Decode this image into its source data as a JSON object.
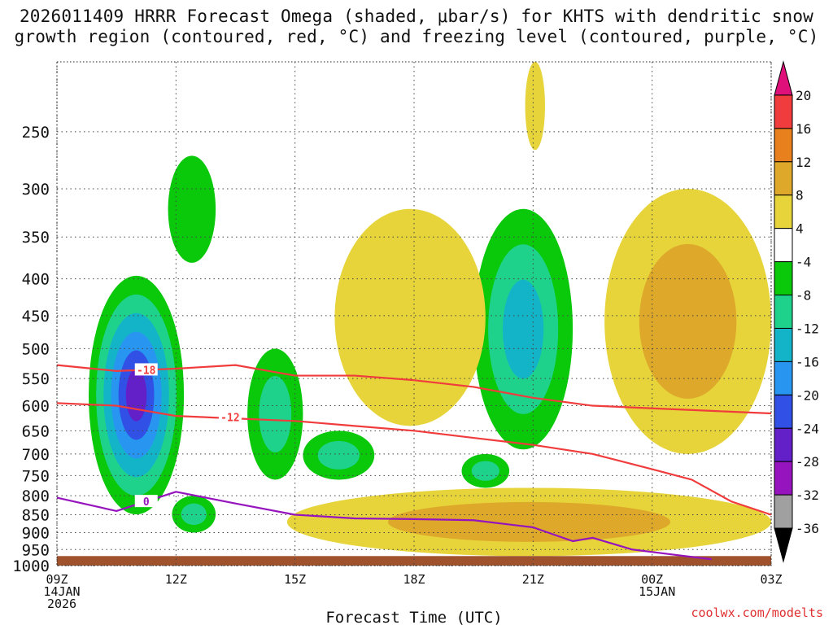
{
  "title_line1": "2026011409 HRRR Forecast Omega (shaded, μbar/s) for KHTS with dendritic snow",
  "title_line2": "growth region (contoured, red, °C) and freezing level (contoured, purple, °C)",
  "credit": "coolwx.com/modelts",
  "chart_data": {
    "type": "time-height contour",
    "title": "2026011409 HRRR Forecast Omega (shaded, μbar/s) for KHTS with dendritic snow growth region (contoured, red, °C) and freezing level (contoured, purple, °C)",
    "xlabel": "Forecast Time (UTC)",
    "ylabel": "Pressure (hPa)",
    "x_ticks": [
      {
        "hour": 0,
        "lines": [
          "09Z",
          "14JAN",
          "2026"
        ]
      },
      {
        "hour": 3,
        "lines": [
          "12Z"
        ]
      },
      {
        "hour": 6,
        "lines": [
          "15Z"
        ]
      },
      {
        "hour": 9,
        "lines": [
          "18Z"
        ]
      },
      {
        "hour": 12,
        "lines": [
          "21Z"
        ]
      },
      {
        "hour": 15,
        "lines": [
          "00Z",
          "15JAN"
        ]
      },
      {
        "hour": 18,
        "lines": [
          "03Z"
        ]
      }
    ],
    "xlim_hours": [
      0,
      18
    ],
    "ylim_hpa": [
      1000,
      200
    ],
    "y_ticks": [
      250,
      300,
      350,
      400,
      450,
      500,
      550,
      600,
      650,
      700,
      750,
      800,
      850,
      900,
      950,
      1000
    ],
    "surface_pressure_hpa": 970,
    "colorbar": {
      "labels": [
        "20",
        "16",
        "12",
        "8",
        "4",
        "-4",
        "-8",
        "-12",
        "-16",
        "-20",
        "-24",
        "-28",
        "-32",
        "-36"
      ],
      "bins": [
        {
          "range": ">20",
          "color": "#e0107a"
        },
        {
          "range": "16 to 20",
          "color": "#f03c3c"
        },
        {
          "range": "12 to 16",
          "color": "#e8801e"
        },
        {
          "range": "8 to 12",
          "color": "#dea82a"
        },
        {
          "range": "4 to 8",
          "color": "#e6d43a"
        },
        {
          "range": "-4 to 4",
          "color": "#ffffff"
        },
        {
          "range": "-8 to -4",
          "color": "#0ac80a"
        },
        {
          "range": "-12 to -8",
          "color": "#1ed28c"
        },
        {
          "range": "-16 to -12",
          "color": "#14b4c8"
        },
        {
          "range": "-20 to -16",
          "color": "#2896f0"
        },
        {
          "range": "-24 to -20",
          "color": "#3050e6"
        },
        {
          "range": "-28 to -24",
          "color": "#6420c8"
        },
        {
          "range": "-32 to -28",
          "color": "#9614be"
        },
        {
          "range": "-36 to -32",
          "color": "#a0a0a0"
        },
        {
          "range": "<-36",
          "color": "#000000"
        }
      ]
    },
    "omega_regions": [
      {
        "name": "descent-left-upper-green",
        "sign": "upward",
        "band": "-8 to -4",
        "hours": [
          11.8,
          13.0
        ],
        "hpa": [
          270,
          380
        ]
      },
      {
        "name": "updraft-core-11z",
        "sign": "upward",
        "min_value_range": "-28 to -24",
        "hours": [
          9.6,
          12.0
        ],
        "hpa": [
          420,
          900
        ],
        "core_hour": 11.0,
        "core_hpa": 580
      },
      {
        "name": "updraft-12z-low",
        "sign": "upward",
        "band": "-12 to -8",
        "hours": [
          11.9,
          13.0
        ],
        "hpa": [
          800,
          900
        ]
      },
      {
        "name": "updraft-15z",
        "sign": "upward",
        "band": "-12 to -8",
        "hours": [
          13.8,
          15.2
        ],
        "hpa": [
          500,
          760
        ]
      },
      {
        "name": "updraft-16z",
        "sign": "upward",
        "band": "-12 to -8",
        "hours": [
          15.2,
          17.0
        ],
        "hpa": [
          650,
          760
        ]
      },
      {
        "name": "updraft-21z",
        "sign": "upward",
        "min_value_range": "-16 to -12",
        "hours": [
          19.5,
          22.0
        ],
        "hpa": [
          320,
          690
        ]
      },
      {
        "name": "updraft-21z-low",
        "sign": "upward",
        "band": "-12 to -8",
        "hours": [
          20.8,
          21.6
        ],
        "hpa": [
          850,
          960
        ]
      },
      {
        "name": "updraft-19z-small",
        "sign": "upward",
        "band": "-12 to -8",
        "hours": [
          19.2,
          20.4
        ],
        "hpa": [
          700,
          780
        ]
      },
      {
        "name": "subsidence-16z-19z",
        "sign": "downward",
        "band": "4 to 8",
        "hours": [
          16.0,
          19.8
        ],
        "hpa": [
          320,
          640
        ]
      },
      {
        "name": "subsidence-21z-top",
        "sign": "downward",
        "band": "4 to 8",
        "hours": [
          20.8,
          21.3
        ],
        "hpa": [
          200,
          265
        ]
      },
      {
        "name": "subsidence-23z-02z",
        "sign": "downward",
        "max_value_range": "8 to 12",
        "hours": [
          22.8,
          27.0
        ],
        "hpa": [
          300,
          700
        ]
      },
      {
        "name": "subsidence-low-levels",
        "sign": "downward",
        "max_value_range": "8 to 12",
        "hours": [
          14.8,
          27.0
        ],
        "hpa": [
          780,
          970
        ]
      }
    ],
    "contours": [
      {
        "label": "-18",
        "color": "#f03c3c",
        "variable": "temperature",
        "hours": [
          9.0,
          10.5,
          12.0,
          13.5,
          15.0,
          16.5,
          18.0,
          19.5,
          21.0,
          22.5,
          24.0,
          25.5,
          27.0
        ],
        "hpa": [
          527,
          537,
          533,
          527,
          545,
          545,
          553,
          565,
          585,
          600,
          605,
          610,
          615
        ]
      },
      {
        "label": "-12",
        "color": "#f03c3c",
        "variable": "temperature",
        "hours": [
          9.0,
          10.5,
          12.0,
          13.5,
          15.0,
          16.5,
          18.0,
          19.5,
          21.0,
          22.5,
          24.0,
          25.0,
          26.0,
          27.0
        ],
        "hpa": [
          595,
          600,
          620,
          625,
          630,
          640,
          650,
          665,
          680,
          700,
          735,
          760,
          815,
          850
        ]
      },
      {
        "label": "0",
        "color": "#9614be",
        "variable": "freezing level",
        "hours": [
          9.0,
          10.5,
          12.0,
          13.5,
          15.0,
          16.5,
          18.0,
          19.5,
          21.0,
          22.0,
          22.5,
          23.5,
          24.5,
          25.5
        ],
        "hpa": [
          805,
          840,
          790,
          820,
          850,
          860,
          862,
          865,
          885,
          925,
          915,
          950,
          965,
          980
        ]
      }
    ],
    "legend": "colorbar right"
  }
}
